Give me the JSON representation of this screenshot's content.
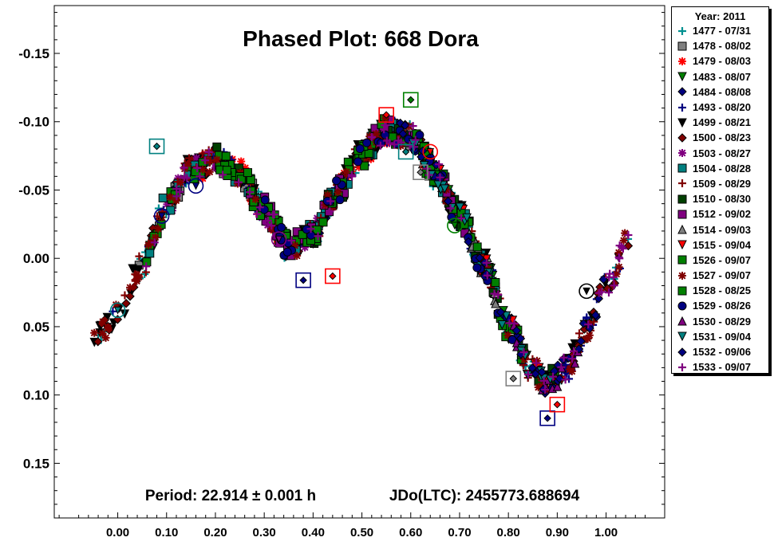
{
  "chart_data": {
    "type": "scatter",
    "title": "Phased Plot: 668 Dora",
    "annotation_period": "Period: 22.914 ± 0.001 h",
    "annotation_jdo": "JDo(LTC): 2455773.688694",
    "xlabel": "",
    "ylabel": "",
    "xlim": [
      -0.13,
      1.12
    ],
    "ylim": [
      -0.185,
      0.19
    ],
    "y_inverted": true,
    "x_ticks": [
      "0.00",
      "0.10",
      "0.20",
      "0.30",
      "0.40",
      "0.50",
      "0.60",
      "0.70",
      "0.80",
      "0.90",
      "1.00"
    ],
    "y_ticks": [
      "-0.15",
      "-0.10",
      "-0.05",
      "0.00",
      "0.05",
      "0.10",
      "0.15"
    ],
    "grid": false,
    "legend_position": "right",
    "legend_title": "Year: 2011",
    "lightcurve_x": [
      -0.05,
      0.0,
      0.05,
      0.1,
      0.15,
      0.2,
      0.25,
      0.3,
      0.35,
      0.4,
      0.45,
      0.5,
      0.55,
      0.6,
      0.65,
      0.7,
      0.75,
      0.8,
      0.85,
      0.88,
      0.92,
      0.96,
      1.0,
      1.05
    ],
    "lightcurve_y": [
      0.062,
      0.04,
      0.005,
      -0.04,
      -0.065,
      -0.072,
      -0.062,
      -0.035,
      -0.008,
      -0.018,
      -0.05,
      -0.076,
      -0.093,
      -0.09,
      -0.062,
      -0.03,
      0.005,
      0.05,
      0.082,
      0.092,
      0.08,
      0.052,
      0.02,
      -0.015
    ],
    "series": [
      {
        "name": "1477 - 07/31",
        "marker": "plus",
        "color": "#009090",
        "x_range": [
          -0.05,
          1.05
        ],
        "scatter": 0.01
      },
      {
        "name": "1478 - 08/02",
        "marker": "square",
        "color": "#808080",
        "x_range": [
          0.03,
          0.35
        ],
        "scatter": 0.008
      },
      {
        "name": "1479 - 08/03",
        "marker": "asterisk",
        "color": "#ff0000",
        "x_range": [
          0.15,
          0.7
        ],
        "scatter": 0.01
      },
      {
        "name": "1483 - 08/07",
        "marker": "triangle-down",
        "color": "#008000",
        "x_range": [
          0.5,
          0.9
        ],
        "scatter": 0.008
      },
      {
        "name": "1484 - 08/08",
        "marker": "diamond",
        "color": "#000080",
        "x_range": [
          0.05,
          0.95
        ],
        "scatter": 0.008
      },
      {
        "name": "1493 - 08/20",
        "marker": "plus",
        "color": "#000080",
        "x_range": [
          -0.02,
          1.04
        ],
        "scatter": 0.009
      },
      {
        "name": "1499 - 08/21",
        "marker": "triangle-down",
        "color": "#000000",
        "x_range": [
          -0.05,
          1.05
        ],
        "scatter": 0.01
      },
      {
        "name": "1500 - 08/23",
        "marker": "diamond",
        "color": "#800000",
        "x_range": [
          -0.05,
          1.05
        ],
        "scatter": 0.009
      },
      {
        "name": "1503 - 08/27",
        "marker": "asterisk",
        "color": "#800080",
        "x_range": [
          0.1,
          0.45
        ],
        "scatter": 0.01
      },
      {
        "name": "1504 - 08/28",
        "marker": "square",
        "color": "#008080",
        "x_range": [
          0.05,
          0.8
        ],
        "scatter": 0.008
      },
      {
        "name": "1509 - 08/29",
        "marker": "plus",
        "color": "#800000",
        "x_range": [
          0.0,
          1.0
        ],
        "scatter": 0.009
      },
      {
        "name": "1510 - 08/30",
        "marker": "square",
        "color": "#004000",
        "x_range": [
          0.2,
          0.9
        ],
        "scatter": 0.01
      },
      {
        "name": "1512 - 09/02",
        "marker": "square",
        "color": "#800080",
        "x_range": [
          0.25,
          0.72
        ],
        "scatter": 0.01
      },
      {
        "name": "1514 - 09/03",
        "marker": "triangle-up",
        "color": "#808080",
        "x_range": [
          0.55,
          0.82
        ],
        "scatter": 0.008
      },
      {
        "name": "1515 - 09/04",
        "marker": "triangle-down",
        "color": "#ff0000",
        "x_range": [
          0.6,
          0.92
        ],
        "scatter": 0.008
      },
      {
        "name": "1526 - 09/07",
        "marker": "square",
        "color": "#008000",
        "x_range": [
          0.05,
          0.85
        ],
        "scatter": 0.01
      },
      {
        "name": "1527 - 09/07",
        "marker": "asterisk",
        "color": "#800000",
        "x_range": [
          -0.05,
          1.05
        ],
        "scatter": 0.01
      },
      {
        "name": "1528 - 08/25",
        "marker": "square",
        "color": "#008000",
        "x_range": [
          0.15,
          0.8
        ],
        "scatter": 0.009
      },
      {
        "name": "1529 - 08/26",
        "marker": "circle",
        "color": "#000080",
        "x_range": [
          0.3,
          0.9
        ],
        "scatter": 0.009
      },
      {
        "name": "1530 - 08/29",
        "marker": "triangle-up",
        "color": "#800080",
        "x_range": [
          0.8,
          0.95
        ],
        "scatter": 0.008
      },
      {
        "name": "1531 - 09/04",
        "marker": "triangle-down",
        "color": "#008080",
        "x_range": [
          0.6,
          0.9
        ],
        "scatter": 0.008
      },
      {
        "name": "1532 - 09/06",
        "marker": "diamond",
        "color": "#000080",
        "x_range": [
          0.55,
          1.0
        ],
        "scatter": 0.008
      },
      {
        "name": "1533 - 09/07",
        "marker": "plus",
        "color": "#800080",
        "x_range": [
          0.05,
          1.05
        ],
        "scatter": 0.009
      }
    ],
    "highlighted_points": [
      {
        "x": 0.08,
        "y": -0.082,
        "marker": "square",
        "color": "#008080"
      },
      {
        "x": 0.38,
        "y": 0.016,
        "marker": "square",
        "color": "#000080"
      },
      {
        "x": 0.44,
        "y": 0.013,
        "marker": "square",
        "color": "#ff0000"
      },
      {
        "x": 0.55,
        "y": -0.105,
        "marker": "square",
        "color": "#ff0000"
      },
      {
        "x": 0.59,
        "y": -0.078,
        "marker": "square",
        "color": "#008080"
      },
      {
        "x": 0.6,
        "y": -0.116,
        "marker": "square",
        "color": "#008000"
      },
      {
        "x": 0.81,
        "y": 0.088,
        "marker": "square",
        "color": "#808080"
      },
      {
        "x": 0.88,
        "y": 0.117,
        "marker": "square",
        "color": "#000080"
      },
      {
        "x": 0.9,
        "y": 0.107,
        "marker": "square",
        "color": "#ff0000"
      },
      {
        "x": 0.96,
        "y": 0.024,
        "marker": "circle",
        "color": "#000000"
      },
      {
        "x": 0.0,
        "y": 0.038,
        "marker": "circle",
        "color": "#008080"
      },
      {
        "x": 0.09,
        "y": -0.031,
        "marker": "circle",
        "color": "#000080"
      },
      {
        "x": 0.16,
        "y": -0.053,
        "marker": "circle",
        "color": "#000080"
      },
      {
        "x": 0.64,
        "y": -0.078,
        "marker": "circle",
        "color": "#ff0000"
      },
      {
        "x": 0.69,
        "y": -0.024,
        "marker": "circle",
        "color": "#008000"
      },
      {
        "x": 0.33,
        "y": -0.014,
        "marker": "circle",
        "color": "#800080"
      },
      {
        "x": 0.62,
        "y": -0.063,
        "marker": "square",
        "color": "#808080"
      }
    ]
  }
}
